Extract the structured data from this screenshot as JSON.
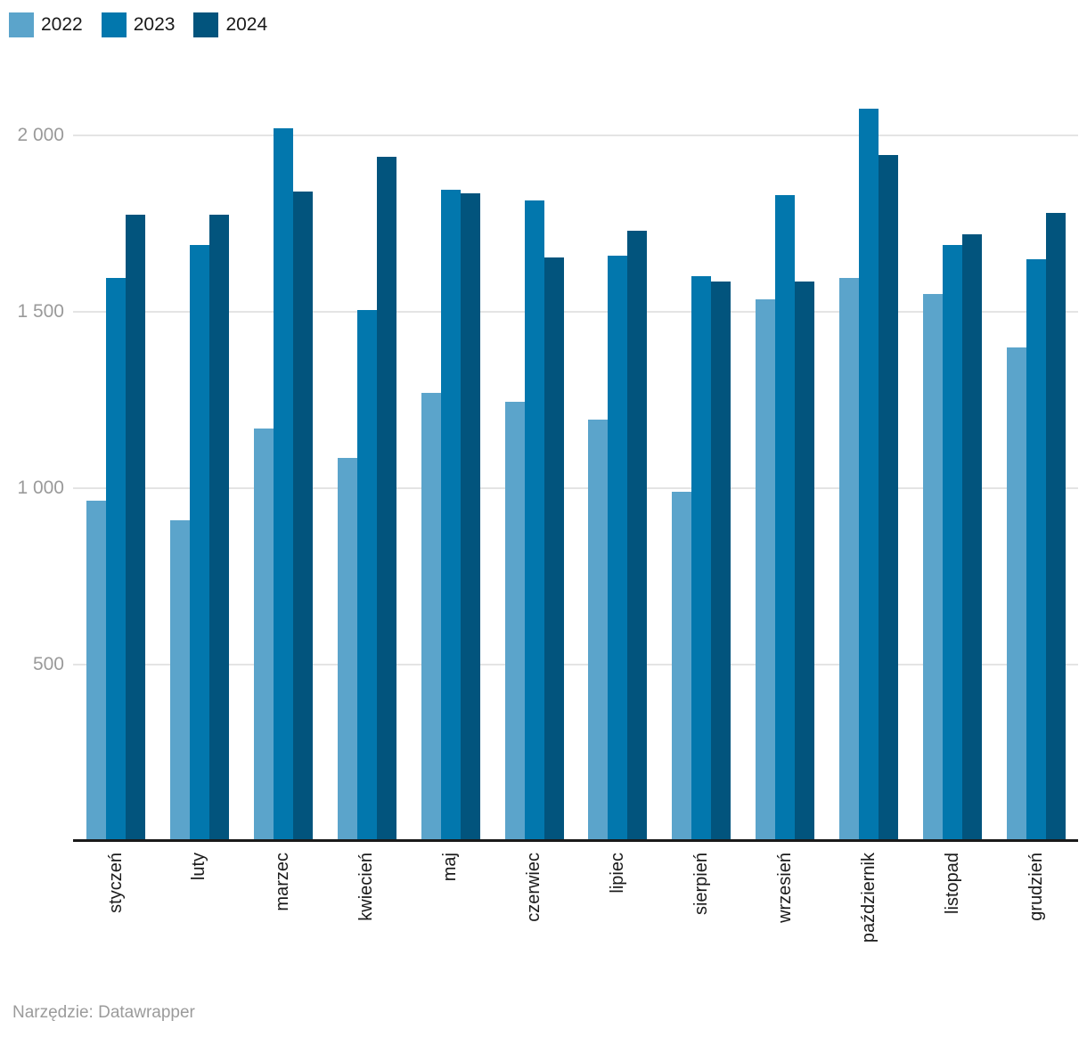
{
  "chart_data": {
    "type": "bar",
    "title": "",
    "categories": [
      "styczeń",
      "luty",
      "marzec",
      "kwiecień",
      "maj",
      "czerwiec",
      "lipiec",
      "sierpień",
      "wrzesień",
      "październik",
      "listopad",
      "grudzień"
    ],
    "series": [
      {
        "name": "2022",
        "color": "#5BA4CB",
        "values": [
          965,
          910,
          1170,
          1085,
          1270,
          1245,
          1195,
          990,
          1535,
          1595,
          1550,
          1400
        ]
      },
      {
        "name": "2023",
        "color": "#0277AD",
        "values": [
          1595,
          1690,
          2020,
          1505,
          1845,
          1815,
          1660,
          1600,
          1830,
          2075,
          1690,
          1650
        ]
      },
      {
        "name": "2024",
        "color": "#02547D",
        "values": [
          1775,
          1775,
          1840,
          1940,
          1835,
          1655,
          1730,
          1585,
          1585,
          1945,
          1720,
          1780
        ]
      }
    ],
    "ylim": [
      0,
      2100
    ],
    "yticks": [
      {
        "value": 500,
        "label": "500"
      },
      {
        "value": 1000,
        "label": "1 000"
      },
      {
        "value": 1500,
        "label": "1 500"
      },
      {
        "value": 2000,
        "label": "2 000"
      }
    ],
    "grid": "horizontal",
    "legend_position": "top-left",
    "xlabel": "",
    "ylabel": ""
  },
  "legend": {
    "items": [
      "2022",
      "2023",
      "2024"
    ]
  },
  "colors": {
    "gridline": "#e4e4e4",
    "axis_line": "#1a1a1a",
    "ytick_text": "#9a9a9a",
    "xtick_text": "#1a1a1a",
    "footer_text": "#9b9b9b"
  },
  "footer": {
    "text": "Narzędzie: Datawrapper"
  }
}
